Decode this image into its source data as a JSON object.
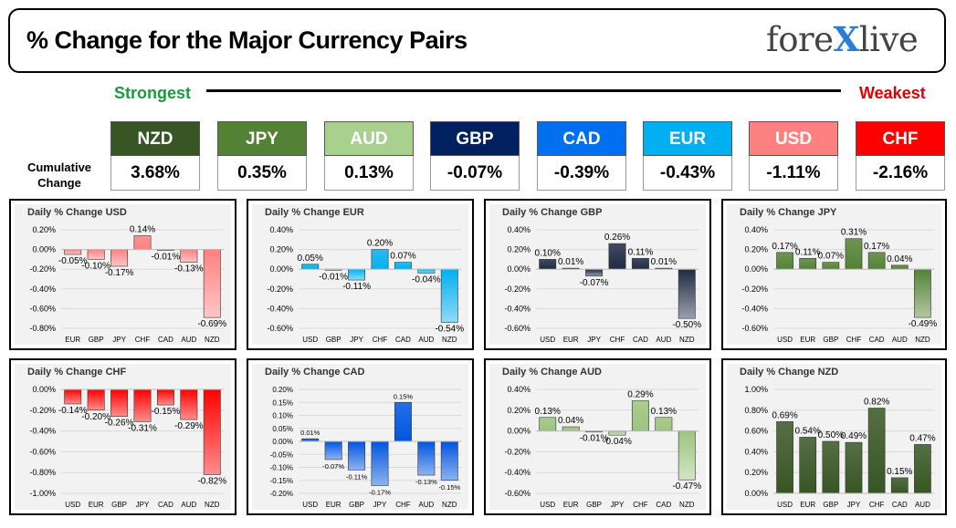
{
  "header": {
    "title": "% Change for the Major Currency Pairs",
    "logo_left": "fore",
    "logo_x": "X",
    "logo_right": "live"
  },
  "scale": {
    "strongest": "Strongest",
    "weakest": "Weakest"
  },
  "cumulative": {
    "label": "Cumulative Change",
    "items": [
      {
        "name": "NZD",
        "value": "3.68%",
        "color": "#375623"
      },
      {
        "name": "JPY",
        "value": "0.35%",
        "color": "#548235"
      },
      {
        "name": "AUD",
        "value": "0.13%",
        "color": "#a9d18e"
      },
      {
        "name": "GBP",
        "value": "-0.07%",
        "color": "#002060"
      },
      {
        "name": "CAD",
        "value": "-0.39%",
        "color": "#0070f0"
      },
      {
        "name": "EUR",
        "value": "-0.43%",
        "color": "#00b0f0"
      },
      {
        "name": "USD",
        "value": "-1.11%",
        "color": "#ff8080"
      },
      {
        "name": "CHF",
        "value": "-2.16%",
        "color": "#ff0000"
      }
    ]
  },
  "chart_data": [
    {
      "type": "bar",
      "title": "Daily % Change USD",
      "categories": [
        "EUR",
        "GBP",
        "JPY",
        "CHF",
        "CAD",
        "AUD",
        "NZD"
      ],
      "values": [
        -0.05,
        -0.1,
        -0.17,
        0.14,
        -0.01,
        -0.13,
        -0.69
      ],
      "labels": [
        "-0.05%",
        "-0.10%",
        "-0.17%",
        "0.14%",
        "-0.01%",
        "-0.13%",
        "-0.69%"
      ],
      "ylim": [
        -0.8,
        0.2
      ],
      "yticks": [
        0.2,
        0,
        -0.2,
        -0.4,
        -0.6,
        -0.8
      ],
      "ytick_labels": [
        "0.20%",
        "0.00%",
        "-0.20%",
        "-0.40%",
        "-0.60%",
        "-0.80%"
      ],
      "color": "#ff8080",
      "grid": true
    },
    {
      "type": "bar",
      "title": "Daily % Change EUR",
      "categories": [
        "USD",
        "GBP",
        "JPY",
        "CHF",
        "CAD",
        "AUD",
        "NZD"
      ],
      "values": [
        0.05,
        -0.01,
        -0.11,
        0.2,
        0.07,
        -0.04,
        -0.54
      ],
      "labels": [
        "0.05%",
        "-0.01%",
        "-0.11%",
        "0.20%",
        "0.07%",
        "-0.04%",
        "-0.54%"
      ],
      "ylim": [
        -0.6,
        0.4
      ],
      "yticks": [
        0.4,
        0.2,
        0,
        -0.2,
        -0.4,
        -0.6
      ],
      "ytick_labels": [
        "0.40%",
        "0.20%",
        "0.00%",
        "-0.20%",
        "-0.40%",
        "-0.60%"
      ],
      "color": "#00b0f0",
      "grid": true
    },
    {
      "type": "bar",
      "title": "Daily % Change GBP",
      "categories": [
        "USD",
        "EUR",
        "JPY",
        "CHF",
        "CAD",
        "AUD",
        "NZD"
      ],
      "values": [
        0.1,
        0.01,
        -0.07,
        0.26,
        0.11,
        0.01,
        -0.5
      ],
      "labels": [
        "0.10%",
        "0.01%",
        "-0.07%",
        "0.26%",
        "0.11%",
        "0.01%",
        "-0.50%"
      ],
      "ylim": [
        -0.6,
        0.4
      ],
      "yticks": [
        0.4,
        0.2,
        0,
        -0.2,
        -0.4,
        -0.6
      ],
      "ytick_labels": [
        "0.40%",
        "0.20%",
        "0.00%",
        "-0.20%",
        "-0.40%",
        "-0.60%"
      ],
      "color": "#1f2a44",
      "grid": true
    },
    {
      "type": "bar",
      "title": "Daily % Change JPY",
      "categories": [
        "USD",
        "EUR",
        "GBP",
        "CHF",
        "CAD",
        "AUD",
        "NZD"
      ],
      "values": [
        0.17,
        0.11,
        0.07,
        0.31,
        0.17,
        0.04,
        -0.49
      ],
      "labels": [
        "0.17%",
        "0.11%",
        "0.07%",
        "0.31%",
        "0.17%",
        "0.04%",
        "-0.49%"
      ],
      "ylim": [
        -0.6,
        0.4
      ],
      "yticks": [
        0.4,
        0.2,
        0,
        -0.2,
        -0.4,
        -0.6
      ],
      "ytick_labels": [
        "0.40%",
        "0.20%",
        "0.00%",
        "-0.20%",
        "-0.40%",
        "-0.60%"
      ],
      "color": "#548235",
      "grid": true
    },
    {
      "type": "bar",
      "title": "Daily % Change CHF",
      "categories": [
        "USD",
        "EUR",
        "GBP",
        "JPY",
        "CAD",
        "AUD",
        "NZD"
      ],
      "values": [
        -0.14,
        -0.2,
        -0.26,
        -0.31,
        -0.15,
        -0.29,
        -0.82
      ],
      "labels": [
        "-0.14%",
        "-0.20%",
        "-0.26%",
        "-0.31%",
        "-0.15%",
        "-0.29%",
        "-0.82%"
      ],
      "ylim": [
        -1.0,
        0.0
      ],
      "yticks": [
        0,
        -0.2,
        -0.4,
        -0.6,
        -0.8,
        -1.0
      ],
      "ytick_labels": [
        "0.00%",
        "-0.20%",
        "-0.40%",
        "-0.60%",
        "-0.80%",
        "-1.00%"
      ],
      "color": "#ff0000",
      "grid": true
    },
    {
      "type": "bar",
      "title": "Daily % Change CAD",
      "categories": [
        "USD",
        "EUR",
        "GBP",
        "JPY",
        "CHF",
        "AUD",
        "NZD"
      ],
      "values": [
        0.01,
        -0.07,
        -0.11,
        -0.17,
        0.15,
        -0.13,
        -0.15
      ],
      "labels": [
        "0.01%",
        "-0.07%",
        "-0.11%",
        "-0.17%",
        "0.15%",
        "-0.13%",
        "-0.15%"
      ],
      "ylim": [
        -0.2,
        0.2
      ],
      "yticks": [
        0.2,
        0.15,
        0.1,
        0.05,
        0,
        -0.05,
        -0.1,
        -0.15,
        -0.2
      ],
      "ytick_labels": [
        "0.20%",
        "0.15%",
        "0.10%",
        "0.05%",
        "0.00%",
        "-0.05%",
        "-0.10%",
        "-0.15%",
        "-0.20%"
      ],
      "color": "#0055e0",
      "grid": true
    },
    {
      "type": "bar",
      "title": "Daily % Change AUD",
      "categories": [
        "USD",
        "EUR",
        "GBP",
        "JPY",
        "CHF",
        "CAD",
        "NZD"
      ],
      "values": [
        0.13,
        0.04,
        -0.01,
        -0.04,
        0.29,
        0.13,
        -0.47
      ],
      "labels": [
        "0.13%",
        "0.04%",
        "-0.01%",
        "-0.04%",
        "0.29%",
        "0.13%",
        "-0.47%"
      ],
      "ylim": [
        -0.6,
        0.4
      ],
      "yticks": [
        0.4,
        0.2,
        0,
        -0.2,
        -0.4,
        -0.6
      ],
      "ytick_labels": [
        "0.40%",
        "0.20%",
        "0.00%",
        "-0.20%",
        "-0.40%",
        "-0.60%"
      ],
      "color": "#9cc47e",
      "grid": true
    },
    {
      "type": "bar",
      "title": "Daily % Change NZD",
      "categories": [
        "USD",
        "EUR",
        "GBP",
        "JPY",
        "CHF",
        "CAD",
        "AUD"
      ],
      "values": [
        0.69,
        0.54,
        0.5,
        0.49,
        0.82,
        0.15,
        0.47
      ],
      "labels": [
        "0.69%",
        "0.54%",
        "0.50%",
        "0.49%",
        "0.82%",
        "0.15%",
        "0.47%"
      ],
      "ylim": [
        0,
        1.0
      ],
      "yticks": [
        1.0,
        0.8,
        0.6,
        0.4,
        0.2,
        0
      ],
      "ytick_labels": [
        "1.00%",
        "0.80%",
        "0.60%",
        "0.40%",
        "0.20%",
        "0.00%"
      ],
      "color": "#375623",
      "grid": true
    }
  ]
}
